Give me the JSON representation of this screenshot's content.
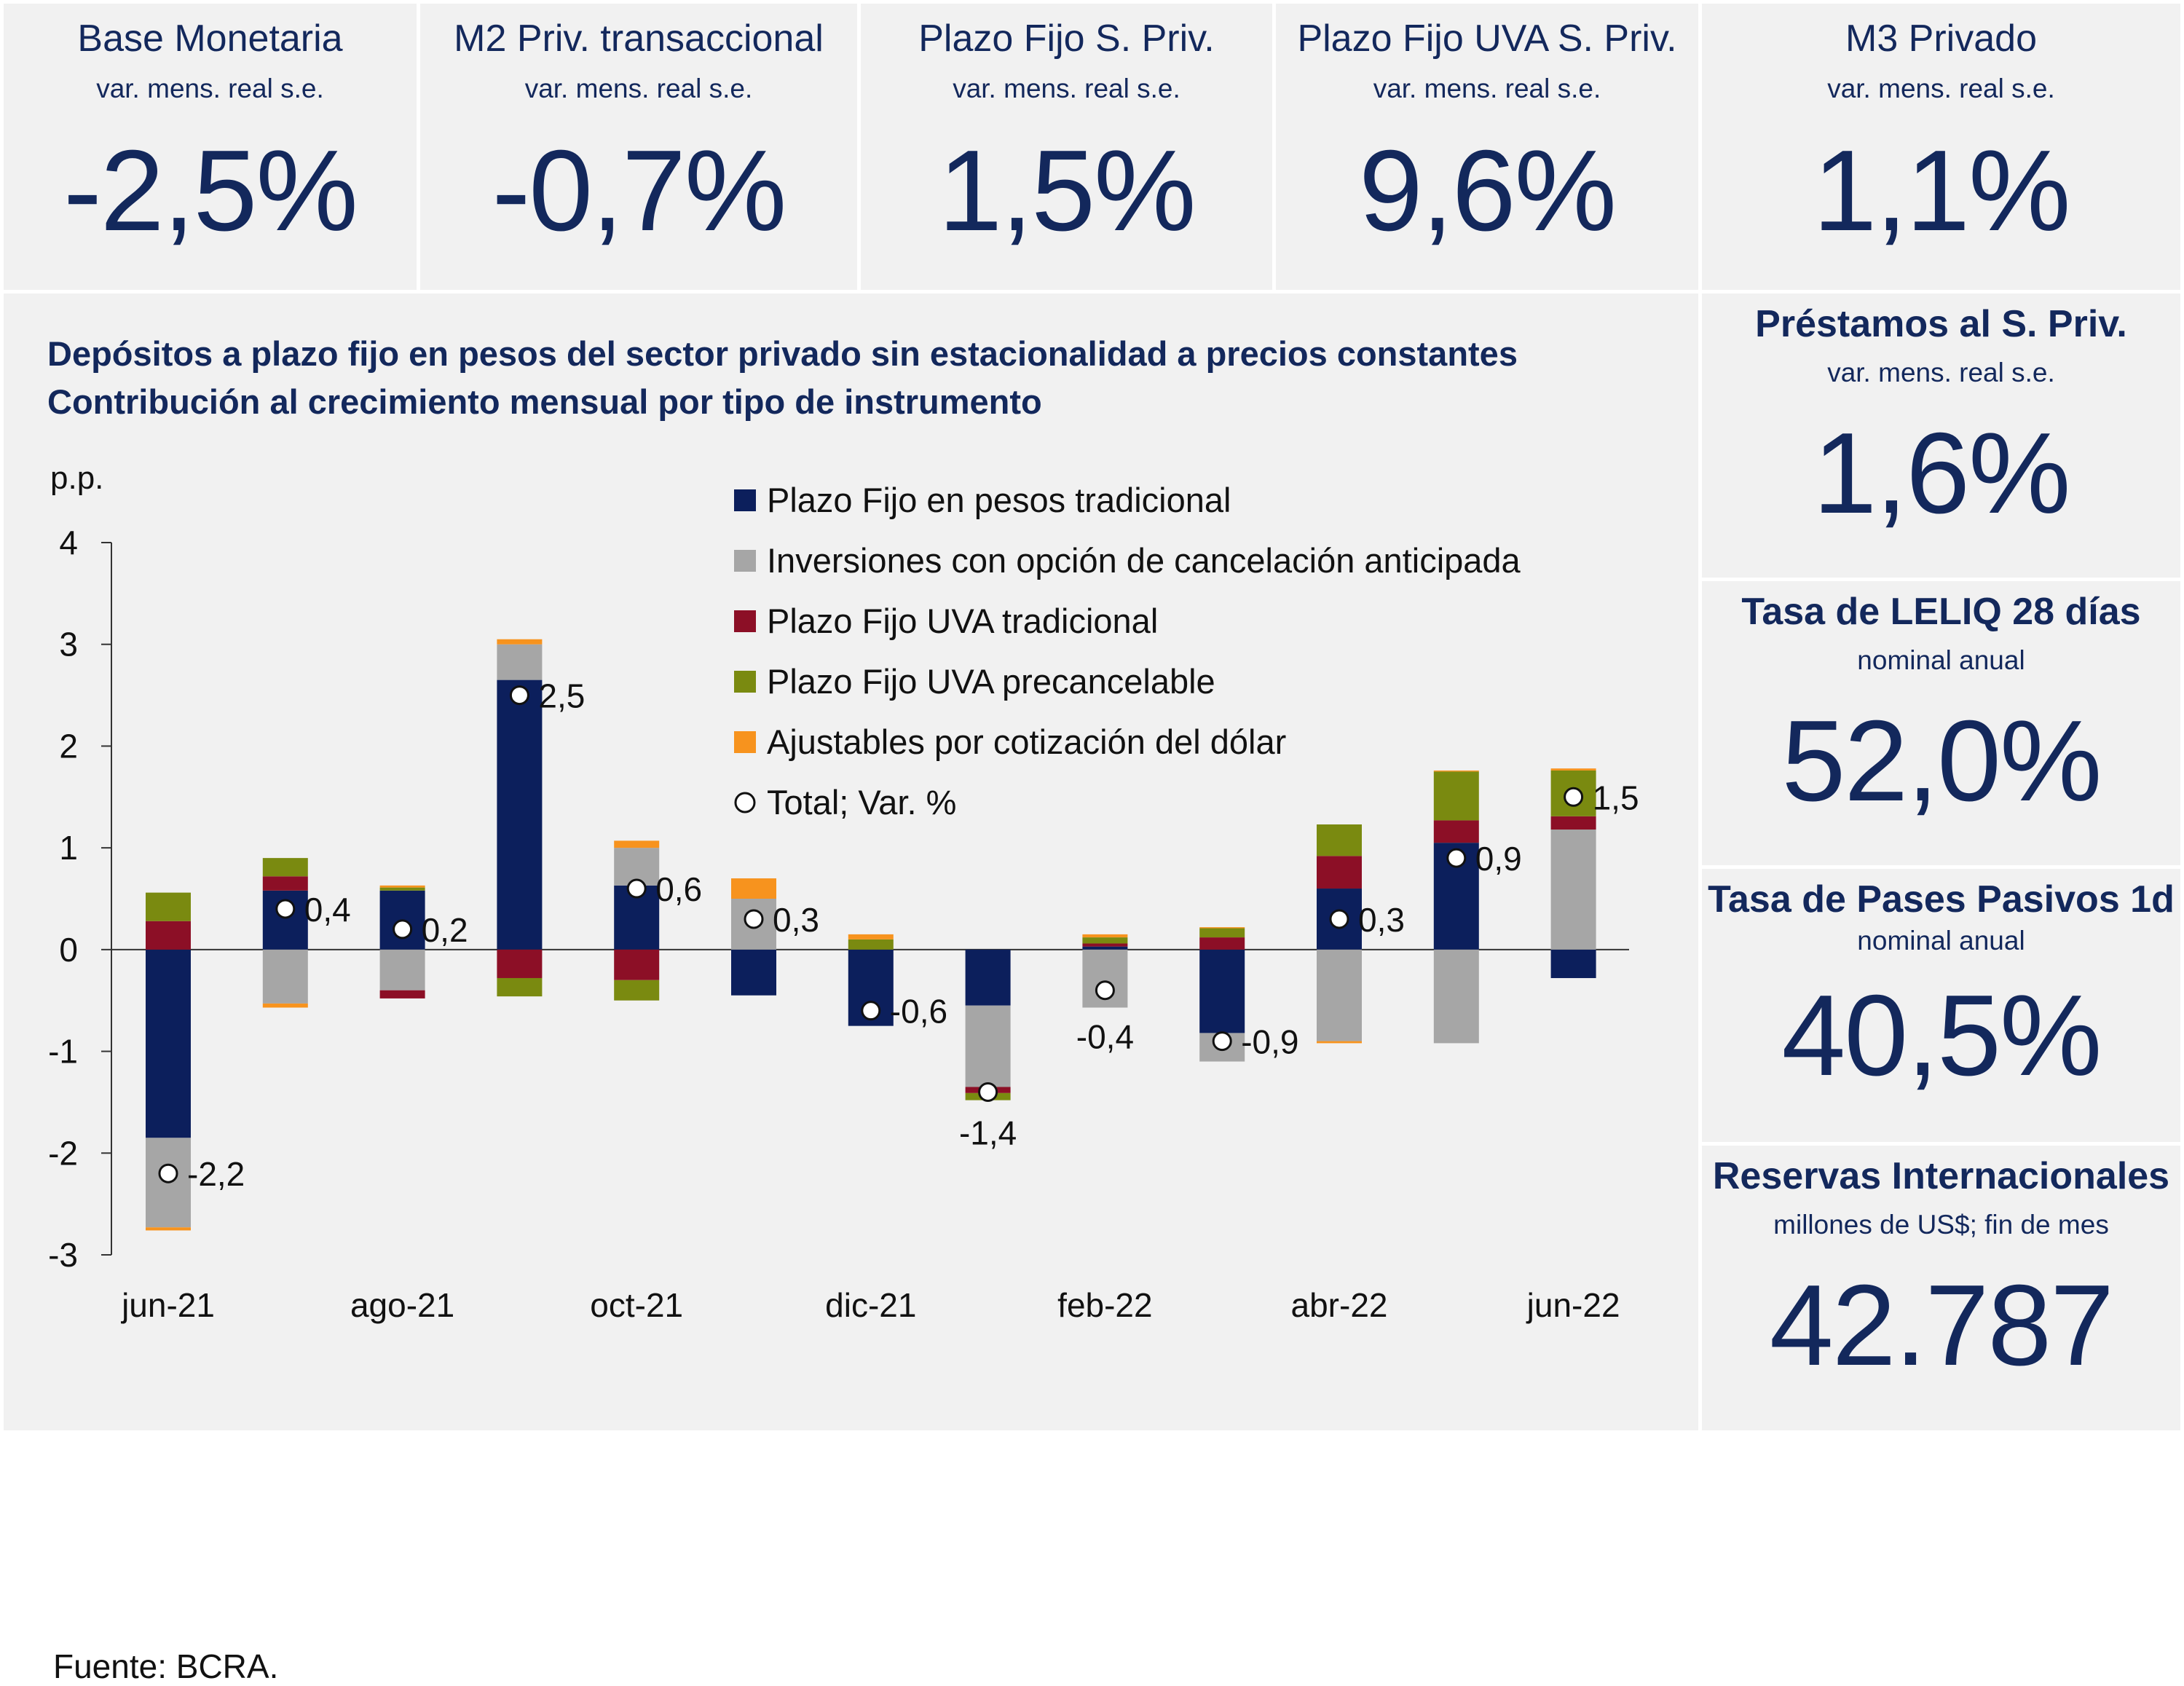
{
  "kpis": [
    {
      "title": "Base Monetaria",
      "subtitle": "var. mens. real s.e.",
      "value": "-2,5%"
    },
    {
      "title": "M2 Priv. transaccional",
      "subtitle": "var. mens. real s.e.",
      "value": "-0,7%"
    },
    {
      "title": "Plazo Fijo S. Priv.",
      "subtitle": "var. mens. real s.e.",
      "value": "1,5%"
    },
    {
      "title": "Plazo Fijo UVA S. Priv.",
      "subtitle": "var. mens. real s.e.",
      "value": "9,6%"
    },
    {
      "title": "M3 Privado",
      "subtitle": "var. mens. real s.e.",
      "value": "1,1%"
    }
  ],
  "side": [
    {
      "title": "Préstamos al S. Priv.",
      "subtitle": "var. mens. real s.e.",
      "value": "1,6%"
    },
    {
      "title": "Tasa de LELIQ 28 días",
      "subtitle": "nominal anual",
      "value": "52,0%"
    },
    {
      "title": "Tasa de Pases Pasivos 1d",
      "subtitle": "nominal anual",
      "value": "40,5%"
    },
    {
      "title": "Reservas Internacionales",
      "subtitle": "millones de US$; fin de mes",
      "value": "42.787"
    }
  ],
  "chart": {
    "title_line1": "Depósitos a plazo fijo en pesos del sector privado sin estacionalidad a precios constantes",
    "title_line2": "Contribución al crecimiento mensual por tipo de instrumento",
    "source": "Fuente: BCRA."
  },
  "colors": {
    "navy": "#0c1f5c",
    "gray": "#a6a6a6",
    "red": "#8c0f26",
    "olive": "#7a8a10",
    "orange": "#f7931e",
    "text": "#13285c"
  },
  "chart_data": {
    "type": "bar",
    "stacked": true,
    "ylabel": "p.p.",
    "ylim": [
      -3,
      4
    ],
    "yticks": [
      -3,
      -2,
      -1,
      0,
      1,
      2,
      3,
      4
    ],
    "categories": [
      "jun-21",
      "jul-21",
      "ago-21",
      "sep-21",
      "oct-21",
      "nov-21",
      "dic-21",
      "ene-22",
      "feb-22",
      "mar-22",
      "abr-22",
      "may-22",
      "jun-22"
    ],
    "xtick_labels": [
      "jun-21",
      "",
      "ago-21",
      "",
      "oct-21",
      "",
      "dic-21",
      "",
      "feb-22",
      "",
      "abr-22",
      "",
      "jun-22"
    ],
    "legend_position": "top-right",
    "series": [
      {
        "name": "Plazo Fijo en pesos tradicional",
        "color": "#0c1f5c",
        "values": [
          -1.85,
          0.58,
          0.58,
          2.65,
          0.63,
          -0.45,
          -0.75,
          -0.55,
          0.03,
          -0.82,
          0.6,
          1.05,
          -0.28
        ]
      },
      {
        "name": "Inversiones con opción de cancelación anticipada",
        "color": "#a6a6a6",
        "values": [
          -0.88,
          -0.53,
          -0.4,
          0.35,
          0.37,
          0.5,
          0.0,
          -0.8,
          -0.57,
          -0.28,
          -0.9,
          -0.92,
          1.18
        ]
      },
      {
        "name": "Plazo Fijo UVA tradicional",
        "color": "#8c0f26",
        "values": [
          0.28,
          0.14,
          -0.08,
          -0.28,
          -0.3,
          0.0,
          0.0,
          -0.06,
          0.03,
          0.12,
          0.32,
          0.22,
          0.13
        ]
      },
      {
        "name": "Plazo Fijo UVA precancelable",
        "color": "#7a8a10",
        "values": [
          0.28,
          0.18,
          0.03,
          -0.18,
          -0.2,
          0.0,
          0.1,
          -0.07,
          0.06,
          0.09,
          0.31,
          0.48,
          0.45
        ]
      },
      {
        "name": "Ajustables por cotización del dólar",
        "color": "#f7931e",
        "values": [
          -0.03,
          -0.04,
          0.02,
          0.05,
          0.07,
          0.2,
          0.05,
          0.0,
          0.03,
          0.01,
          -0.02,
          0.01,
          0.02
        ]
      }
    ],
    "total": {
      "name": "Total; Var. %",
      "values": [
        -2.2,
        0.4,
        0.2,
        2.5,
        0.6,
        0.3,
        -0.6,
        -1.4,
        -0.4,
        -0.9,
        0.3,
        0.9,
        1.5
      ],
      "labels": [
        "-2,2",
        "0,4",
        "0,2",
        "2,5",
        "0,6",
        "0,3",
        "-0,6",
        "-1,4",
        "-0,4",
        "-0,9",
        "0,3",
        "0,9",
        "1,5"
      ]
    }
  }
}
